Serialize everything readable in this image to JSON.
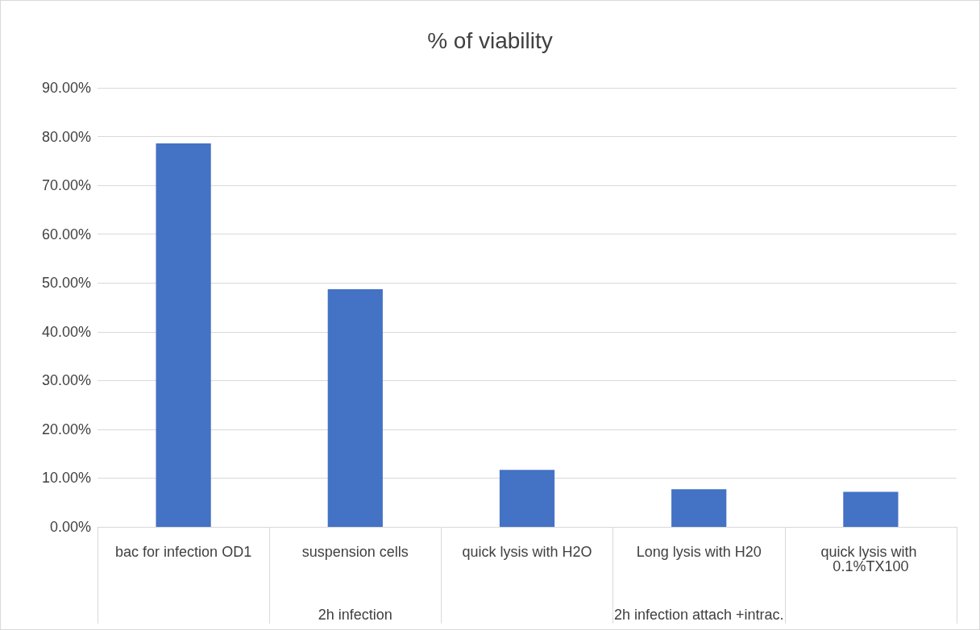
{
  "chart_data": {
    "type": "bar",
    "title": "% of viability",
    "categories": [
      "bac for infection OD1",
      "suspension cells",
      "quick lysis with H2O",
      "Long lysis with H20",
      "quick lysis with 0.1%TX100"
    ],
    "values": [
      78.6,
      48.7,
      11.7,
      7.7,
      7.2
    ],
    "color": "#4472c4",
    "ylim": [
      0,
      90
    ],
    "yticks": [
      {
        "value": 0,
        "label": "0.00%"
      },
      {
        "value": 10,
        "label": "10.00%"
      },
      {
        "value": 20,
        "label": "20.00%"
      },
      {
        "value": 30,
        "label": "30.00%"
      },
      {
        "value": 40,
        "label": "40.00%"
      },
      {
        "value": 50,
        "label": "50.00%"
      },
      {
        "value": 60,
        "label": "60.00%"
      },
      {
        "value": 70,
        "label": "70.00%"
      },
      {
        "value": 80,
        "label": "80.00%"
      },
      {
        "value": 90,
        "label": "90.00%"
      }
    ],
    "grid": "y",
    "annotations": [
      "2h infection",
      "2h infection attach +intrac."
    ]
  }
}
